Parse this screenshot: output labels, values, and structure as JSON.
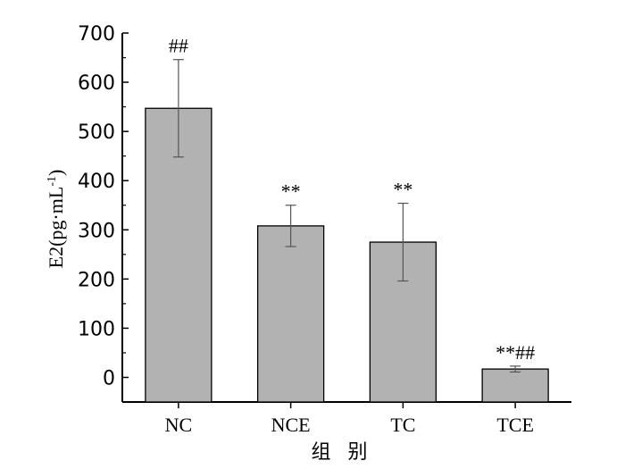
{
  "chart_data": {
    "type": "bar",
    "categories": [
      "NC",
      "NCE",
      "TC",
      "TCE"
    ],
    "values": [
      547,
      308,
      275,
      17
    ],
    "errors": [
      99,
      42,
      79,
      6
    ],
    "annotations": [
      "##",
      "**",
      "**",
      "**##"
    ],
    "ylabel_main": "E2(pg·mL",
    "ylabel_sup": "-1",
    "ylabel_close": ")",
    "xlabel": "组 别",
    "ylim": [
      -50,
      700
    ],
    "yticks": [
      0,
      100,
      200,
      300,
      400,
      500,
      600,
      700
    ],
    "bar_color": "#b2b2b2",
    "grid": false,
    "legend": "none"
  }
}
